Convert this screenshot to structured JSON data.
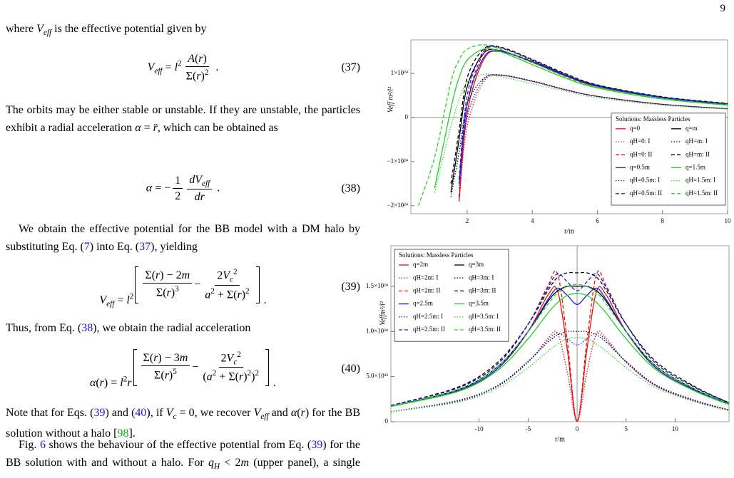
{
  "page_number": "9",
  "paragraphs": [
    [
      "where ",
      {
        "m": "V"
      },
      {
        "sub": [
          {
            "m": "eff"
          }
        ]
      },
      " is the effective potential given by"
    ],
    [
      "The orbits may be either stable or unstable. If they are unstable, the particles exhibit a radial acceleration ",
      {
        "m": "α"
      },
      " = ",
      {
        "m": "r̈"
      },
      ", which can be obtained as"
    ],
    [
      "We obtain the effective potential for the BB model with a DM halo by substituting Eq. (",
      {
        "ref": "7"
      },
      ") into Eq. (",
      {
        "ref": "37"
      },
      "), yielding"
    ],
    [
      "Thus, from Eq. (",
      {
        "ref": "38"
      },
      "), we obtain the radial acceleration"
    ],
    [
      "Note that for Eqs. (",
      {
        "ref": "39"
      },
      ") and (",
      {
        "ref": "40"
      },
      "), if ",
      {
        "m": "V"
      },
      {
        "sub": [
          {
            "m": "c"
          }
        ]
      },
      " = 0, we recover ",
      {
        "m": "V"
      },
      {
        "sub": [
          {
            "m": "eff"
          }
        ]
      },
      " and ",
      {
        "m": "α"
      },
      "(",
      {
        "m": "r"
      },
      ") for the BB solution without a halo [",
      {
        "cite": "98"
      },
      "]."
    ],
    [
      "Fig. ",
      {
        "ref": "6"
      },
      " shows the behaviour of the effective potential from Eq. (",
      {
        "ref": "39"
      },
      ") for the BB solution with and without a halo. For ",
      {
        "m": "q"
      },
      {
        "sub": [
          {
            "m": "H"
          }
        ]
      },
      " < 2",
      {
        "m": "m"
      },
      " (upper panel), a single maximum"
    ]
  ],
  "equations": [
    {
      "tokens": [
        {
          "m": "V"
        },
        {
          "sub": [
            {
              "m": "eff"
            }
          ]
        },
        " = ",
        {
          "m": "l"
        },
        {
          "sup": [
            "2"
          ]
        },
        {
          "frac": {
            "num": [
              {
                "m": "A"
              },
              "(",
              {
                "m": "r"
              },
              ")"
            ],
            "den": [
              "Σ(",
              {
                "m": "r"
              },
              ")",
              {
                "sup": [
                  "2"
                ]
              }
            ]
          }
        },
        " ."
      ],
      "number": "(37)"
    },
    {
      "tokens": [
        {
          "m": "α"
        },
        " = −",
        {
          "frac": {
            "num": [
              "1"
            ],
            "den": [
              "2"
            ]
          }
        },
        {
          "frac": {
            "num": [
              {
                "m": "dV"
              },
              {
                "sub": [
                  {
                    "m": "eff"
                  }
                ]
              }
            ],
            "den": [
              {
                "m": "dr"
              }
            ]
          }
        },
        " ."
      ],
      "number": "(38)"
    },
    {
      "tokens": [
        {
          "m": "V"
        },
        {
          "sub": [
            {
              "m": "eff"
            }
          ]
        },
        " = ",
        {
          "m": "l"
        },
        {
          "sup": [
            "2"
          ]
        },
        {
          "brk": [
            {
              "frac": {
                "num": [
                  "Σ(",
                  {
                    "m": "r"
                  },
                  ") − 2",
                  {
                    "m": "m"
                  }
                ],
                "den": [
                  "Σ(",
                  {
                    "m": "r"
                  },
                  ")",
                  {
                    "sup": [
                      "3"
                    ]
                  }
                ]
              }
            },
            " − ",
            {
              "frac": {
                "num": [
                  "2",
                  {
                    "m": "V"
                  },
                  {
                    "sub": [
                      {
                        "m": "c"
                      }
                    ]
                  },
                  {
                    "sup": [
                      "2"
                    ]
                  }
                ],
                "den": [
                  {
                    "m": "a"
                  },
                  {
                    "sup": [
                      "2"
                    ]
                  },
                  " + Σ(",
                  {
                    "m": "r"
                  },
                  ")",
                  {
                    "sup": [
                      "2"
                    ]
                  }
                ]
              }
            }
          ]
        },
        " ."
      ],
      "number": "(39)"
    },
    {
      "tokens": [
        {
          "m": "α"
        },
        "(",
        {
          "m": "r"
        },
        ") = ",
        {
          "m": "l"
        },
        {
          "sup": [
            "2"
          ]
        },
        {
          "m": "r"
        },
        {
          "brk": [
            {
              "frac": {
                "num": [
                  "Σ(",
                  {
                    "m": "r"
                  },
                  ") − 3",
                  {
                    "m": "m"
                  }
                ],
                "den": [
                  "Σ(",
                  {
                    "m": "r"
                  },
                  ")",
                  {
                    "sup": [
                      "5"
                    ]
                  }
                ]
              }
            },
            " − ",
            {
              "frac": {
                "num": [
                  "2",
                  {
                    "m": "V"
                  },
                  {
                    "sub": [
                      {
                        "m": "c"
                      }
                    ]
                  },
                  {
                    "sup": [
                      "2"
                    ]
                  }
                ],
                "den": [
                  "(",
                  {
                    "m": "a"
                  },
                  {
                    "sup": [
                      "2"
                    ]
                  },
                  " + Σ(",
                  {
                    "m": "r"
                  },
                  ")",
                  {
                    "sup": [
                      "2"
                    ]
                  },
                  ")",
                  {
                    "sup": [
                      "2"
                    ]
                  }
                ]
              }
            }
          ]
        },
        " ."
      ],
      "number": "(40)"
    }
  ],
  "chart_data": [
    {
      "type": "line",
      "xlabel": "r/m",
      "ylabel": "Veff m²/l²",
      "xlim": [
        0.27,
        10
      ],
      "xticks": [
        2,
        4,
        6,
        8,
        10
      ],
      "ylim": [
        -2.18e+24,
        1.76e+24
      ],
      "yticks": [
        {
          "value": -2e+24,
          "label": "−2×10²⁴"
        },
        {
          "value": -1e+24,
          "label": "−1×10²⁴"
        },
        0,
        {
          "value": 1e+24,
          "label": "1×10²⁴"
        }
      ],
      "legend": "lower right",
      "legend_title": "Solutions: Massless Particles",
      "x": [
        0.5,
        1,
        1.5,
        1.75,
        2,
        2.5,
        3,
        4,
        5,
        6,
        8,
        10
      ],
      "series": [
        {
          "name": "q=0",
          "color": "#e41010",
          "dash": "solid",
          "values": [
            null,
            null,
            null,
            -1.9e+24,
            1e+23,
            1.3e+24,
            1.5e+24,
            1.25e+24,
            9.5e+23,
            7e+23,
            4.5e+23,
            3e+23
          ]
        },
        {
          "name": "q=m",
          "color": "#000000",
          "dash": "solid",
          "values": [
            null,
            null,
            -1.7e+24,
            -5e+23,
            7e+23,
            1.45e+24,
            1.52e+24,
            1.27e+24,
            9.7e+23,
            7.2e+23,
            4.6e+23,
            3.1e+23
          ]
        },
        {
          "name": "qH=0: I",
          "color": "#e41010",
          "dash": "dotted",
          "values": [
            null,
            null,
            null,
            -1.9e+24,
            -2e+23,
            8e+23,
            9.5e+23,
            8.2e+23,
            6.3e+23,
            4.8e+23,
            3e+23,
            2e+23
          ]
        },
        {
          "name": "qH=m: I",
          "color": "#000000",
          "dash": "dotted",
          "values": [
            null,
            null,
            -1.8e+24,
            -8e+23,
            3e+23,
            8.8e+23,
            9.7e+23,
            8.3e+23,
            6.4e+23,
            4.8e+23,
            3e+23,
            2e+23
          ]
        },
        {
          "name": "qH=0: II",
          "color": "#e41010",
          "dash": "dashed",
          "values": [
            null,
            null,
            null,
            -1.8e+24,
            3e+23,
            1.45e+24,
            1.58e+24,
            1.3e+24,
            9.8e+23,
            7.3e+23,
            4.6e+23,
            3.1e+23
          ]
        },
        {
          "name": "qH=m: II",
          "color": "#000000",
          "dash": "dashed",
          "values": [
            null,
            null,
            -1.5e+24,
            -3e+23,
            9e+23,
            1.55e+24,
            1.6e+24,
            1.32e+24,
            1e+24,
            7.4e+23,
            4.7e+23,
            3.2e+23
          ]
        },
        {
          "name": "q=0.5m",
          "color": "#1c1cd8",
          "dash": "solid",
          "values": [
            null,
            null,
            null,
            -1.5e+24,
            3e+23,
            1.35e+24,
            1.5e+24,
            1.26e+24,
            9.6e+23,
            7.1e+23,
            4.5e+23,
            3e+23
          ]
        },
        {
          "name": "q=1.5m",
          "color": "#20d020",
          "dash": "solid",
          "values": [
            null,
            -1.6e+24,
            2e+23,
            9e+23,
            1.3e+24,
            1.55e+24,
            1.5e+24,
            1.2e+24,
            9e+23,
            6.7e+23,
            4.2e+23,
            2.8e+23
          ]
        },
        {
          "name": "qH=0.5m: I",
          "color": "#1c1cd8",
          "dash": "dotted",
          "values": [
            null,
            null,
            null,
            -1.6e+24,
            0,
            8.5e+23,
            9.6e+23,
            8.2e+23,
            6.3e+23,
            4.8e+23,
            3e+23,
            2e+23
          ]
        },
        {
          "name": "qH=1.5m: I",
          "color": "#20d020",
          "dash": "dotted",
          "values": [
            null,
            -1.7e+24,
            -2e+23,
            4e+23,
            8e+23,
            9.8e+23,
            9.3e+23,
            7.7e+23,
            6e+23,
            4.5e+23,
            2.8e+23,
            1.9e+23
          ]
        },
        {
          "name": "qH=0.5m: II",
          "color": "#1c1cd8",
          "dash": "dashed",
          "values": [
            null,
            null,
            null,
            -1.4e+24,
            5e+23,
            1.5e+24,
            1.58e+24,
            1.3e+24,
            9.8e+23,
            7.3e+23,
            4.6e+23,
            3.1e+23
          ]
        },
        {
          "name": "qH=1.5m: II",
          "color": "#20d020",
          "dash": "dashed",
          "values": [
            -2e+24,
            -9e+23,
            8e+23,
            1.3e+24,
            1.55e+24,
            1.65e+24,
            1.55e+24,
            1.25e+24,
            9.3e+23,
            6.9e+23,
            4.3e+23,
            2.9e+23
          ]
        }
      ]
    },
    {
      "type": "line",
      "xlabel": "r/m",
      "ylabel": "Veffm²/l²",
      "xlim": [
        -19,
        15.5
      ],
      "xticks": [
        -10,
        -5,
        0,
        5,
        10
      ],
      "ylim": [
        0,
        1.95e+24
      ],
      "yticks": [
        0,
        {
          "value": 5e+23,
          "label": "5.0×10²³"
        },
        {
          "value": 1e+24,
          "label": "1.0×10²⁴"
        },
        {
          "value": 1.5e+24,
          "label": "1.5×10²⁴"
        }
      ],
      "legend": "upper left",
      "legend_title": "Solutions: Massless Particles",
      "x": [
        -19,
        -12,
        -8,
        -5,
        -3,
        -2,
        -1,
        0,
        1,
        2,
        3,
        5,
        8,
        12,
        15.5
      ],
      "series": [
        {
          "name": "q=2m",
          "color": "#e41010",
          "dash": "solid",
          "values": [
            1.7e+23,
            3.5e+23,
            6e+23,
            1e+24,
            1.4e+24,
            1.45e+24,
            8e+23,
            0,
            8e+23,
            1.45e+24,
            1.4e+24,
            1e+24,
            6e+23,
            3.5e+23,
            2e+23
          ]
        },
        {
          "name": "q=3m",
          "color": "#000000",
          "dash": "solid",
          "values": [
            1.7e+23,
            3.6e+23,
            6.2e+23,
            1e+24,
            1.33e+24,
            1.45e+24,
            1.5e+24,
            1.5e+24,
            1.5e+24,
            1.45e+24,
            1.33e+24,
            1e+24,
            6.2e+23,
            3.6e+23,
            2e+23
          ]
        },
        {
          "name": "qH=2m: I",
          "color": "#e41010",
          "dash": "dotted",
          "values": [
            1.1e+23,
            2.3e+23,
            4e+23,
            6.6e+23,
            9.2e+23,
            9.8e+23,
            5.5e+23,
            0,
            5.5e+23,
            9.8e+23,
            9.2e+23,
            6.6e+23,
            4e+23,
            2.3e+23,
            1.3e+23
          ]
        },
        {
          "name": "qH=3m: I",
          "color": "#000000",
          "dash": "dotted",
          "values": [
            1.1e+23,
            2.4e+23,
            4.1e+23,
            6.7e+23,
            8.8e+23,
            9.6e+23,
            1e+24,
            1e+24,
            1e+24,
            9.6e+23,
            8.8e+23,
            6.7e+23,
            4.1e+23,
            2.4e+23,
            1.3e+23
          ]
        },
        {
          "name": "qH=2m: II",
          "color": "#e41010",
          "dash": "dashed",
          "values": [
            1.8e+23,
            3.8e+23,
            6.5e+23,
            1.08e+24,
            1.5e+24,
            1.64e+24,
            9e+23,
            0,
            9e+23,
            1.64e+24,
            1.5e+24,
            1.08e+24,
            6.5e+23,
            3.8e+23,
            2.1e+23
          ]
        },
        {
          "name": "qH=3m: II",
          "color": "#000000",
          "dash": "dashed",
          "values": [
            1.8e+23,
            3.9e+23,
            6.7e+23,
            1.08e+24,
            1.45e+24,
            1.6e+24,
            1.65e+24,
            1.65e+24,
            1.65e+24,
            1.6e+24,
            1.45e+24,
            1.08e+24,
            6.7e+23,
            3.9e+23,
            2.1e+23
          ]
        },
        {
          "name": "q=2.5m",
          "color": "#1c1cd8",
          "dash": "solid",
          "values": [
            1.7e+23,
            3.5e+23,
            6e+23,
            1e+24,
            1.35e+24,
            1.48e+24,
            1.4e+24,
            1.3e+24,
            1.4e+24,
            1.48e+24,
            1.35e+24,
            1e+24,
            6e+23,
            3.5e+23,
            2e+23
          ]
        },
        {
          "name": "q=3.5m",
          "color": "#20d020",
          "dash": "solid",
          "values": [
            1.7e+23,
            3.4e+23,
            5.8e+23,
            9.2e+23,
            1.2e+24,
            1.32e+24,
            1.4e+24,
            1.42e+24,
            1.4e+24,
            1.32e+24,
            1.2e+24,
            9.2e+23,
            5.8e+23,
            3.4e+23,
            1.9e+23
          ]
        },
        {
          "name": "qH=2.5m: I",
          "color": "#1c1cd8",
          "dash": "dotted",
          "values": [
            1.1e+23,
            2.3e+23,
            4e+23,
            6.6e+23,
            9e+23,
            9.8e+23,
            9.2e+23,
            8.5e+23,
            9.2e+23,
            9.8e+23,
            9e+23,
            6.6e+23,
            4e+23,
            2.3e+23,
            1.3e+23
          ]
        },
        {
          "name": "qH=3.5m: I",
          "color": "#20d020",
          "dash": "dotted",
          "values": [
            1.1e+23,
            2.2e+23,
            3.8e+23,
            6e+23,
            7.8e+23,
            8.6e+23,
            9.2e+23,
            9.3e+23,
            9.2e+23,
            8.6e+23,
            7.8e+23,
            6e+23,
            3.8e+23,
            2.2e+23,
            1.2e+23
          ]
        },
        {
          "name": "qH=2.5m: II",
          "color": "#1c1cd8",
          "dash": "dashed",
          "values": [
            1.8e+23,
            3.8e+23,
            6.5e+23,
            1.08e+24,
            1.48e+24,
            1.64e+24,
            1.55e+24,
            1.45e+24,
            1.55e+24,
            1.64e+24,
            1.48e+24,
            1.08e+24,
            6.5e+23,
            3.8e+23,
            2.1e+23
          ]
        },
        {
          "name": "qH=3.5m: II",
          "color": "#20d020",
          "dash": "dashed",
          "values": [
            1.7e+23,
            3.6e+23,
            6.2e+23,
            1e+24,
            1.3e+24,
            1.43e+24,
            1.5e+24,
            1.52e+24,
            1.5e+24,
            1.43e+24,
            1.3e+24,
            1e+24,
            6.2e+23,
            3.6e+23,
            2e+23
          ]
        }
      ]
    }
  ]
}
